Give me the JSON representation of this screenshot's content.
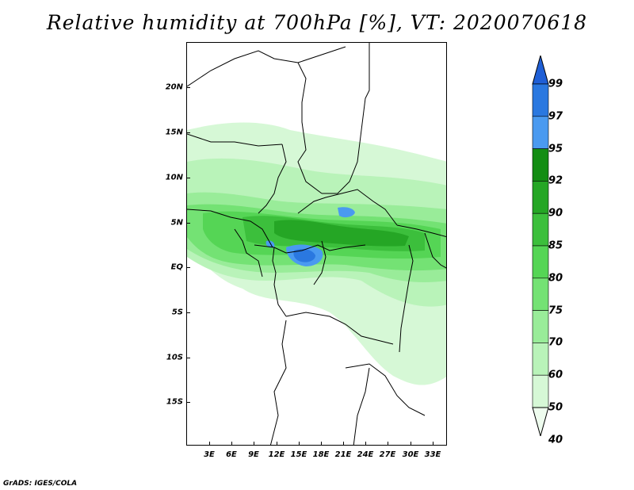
{
  "title": "Relative humidity at 700hPa [%], VT: 2020070618",
  "credit": "GrADS: IGES/COLA",
  "lat_labels": [
    "20N",
    "15N",
    "10N",
    "5N",
    "EQ",
    "5S",
    "10S",
    "15S"
  ],
  "lon_labels": [
    "3E",
    "6E",
    "9E",
    "12E",
    "15E",
    "18E",
    "21E",
    "24E",
    "27E",
    "30E",
    "33E"
  ],
  "colorbar": {
    "levels": [
      "99",
      "97",
      "95",
      "92",
      "90",
      "85",
      "80",
      "75",
      "70",
      "60",
      "50",
      "40"
    ],
    "colors": [
      "#1f5fd6",
      "#2a78e0",
      "#4a9af0",
      "#138d13",
      "#25a625",
      "#3cbf3c",
      "#55d555",
      "#74e274",
      "#99ec99",
      "#b9f3b9",
      "#d6f8d6",
      "#eefcee"
    ]
  }
}
